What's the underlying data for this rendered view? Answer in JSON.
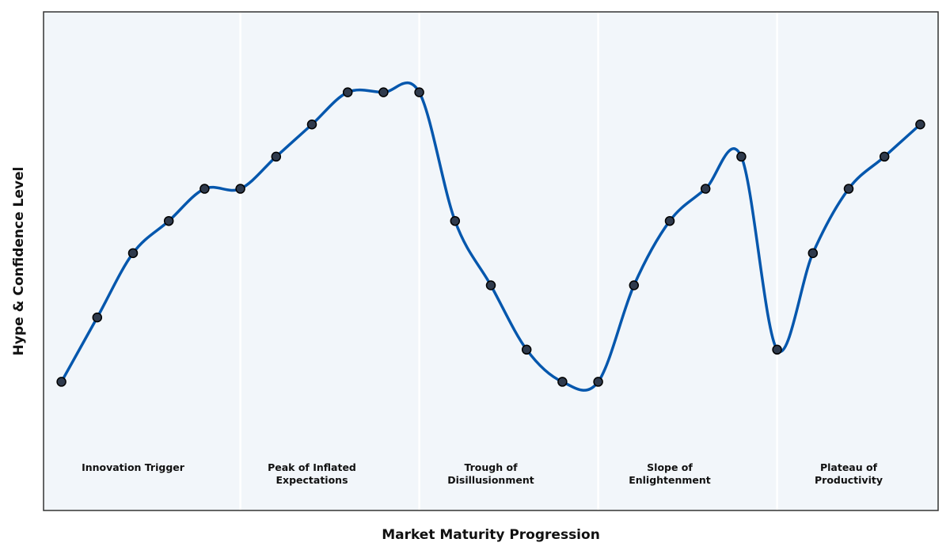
{
  "chart_data": {
    "type": "line",
    "title": "",
    "xlabel": "Market Maturity Progression",
    "ylabel": "Hype & Confidence Level",
    "x": [
      0,
      1,
      2,
      3,
      4,
      5,
      6,
      7,
      8,
      9,
      10,
      11,
      12,
      13,
      14,
      15,
      16,
      17,
      18,
      19,
      20,
      21,
      22,
      23,
      24
    ],
    "series": [
      {
        "values": [
          2.0,
          4.0,
          6.0,
          7.0,
          8.0,
          8.0,
          9.0,
          10.0,
          11.0,
          11.0,
          11.0,
          7.0,
          5.0,
          3.0,
          2.0,
          2.0,
          5.0,
          7.0,
          8.0,
          9.0,
          3.0,
          6.0,
          8.0,
          9.0,
          10.0
        ]
      }
    ],
    "xlim": [
      -0.5,
      24.5
    ],
    "ylim": [
      -2.0,
      13.5
    ],
    "phases": [
      {
        "label_lines": [
          "Innovation Trigger"
        ],
        "center": 2
      },
      {
        "label_lines": [
          "Peak of Inflated",
          "Expectations"
        ],
        "center": 7
      },
      {
        "label_lines": [
          "Trough of",
          "Disillusionment"
        ],
        "center": 12
      },
      {
        "label_lines": [
          "Slope of",
          "Enlightenment"
        ],
        "center": 17
      },
      {
        "label_lines": [
          "Plateau of",
          "Productivity"
        ],
        "center": 22
      }
    ],
    "phase_boundaries": [
      5,
      10,
      15,
      20
    ],
    "grid": false,
    "colors": {
      "line": "#0557ad",
      "marker_fill": "#2f3a4c",
      "marker_edge": "#000000",
      "plot_bg": "#f2f6fa",
      "divider": "#ffffff",
      "frame": "#333333"
    }
  }
}
